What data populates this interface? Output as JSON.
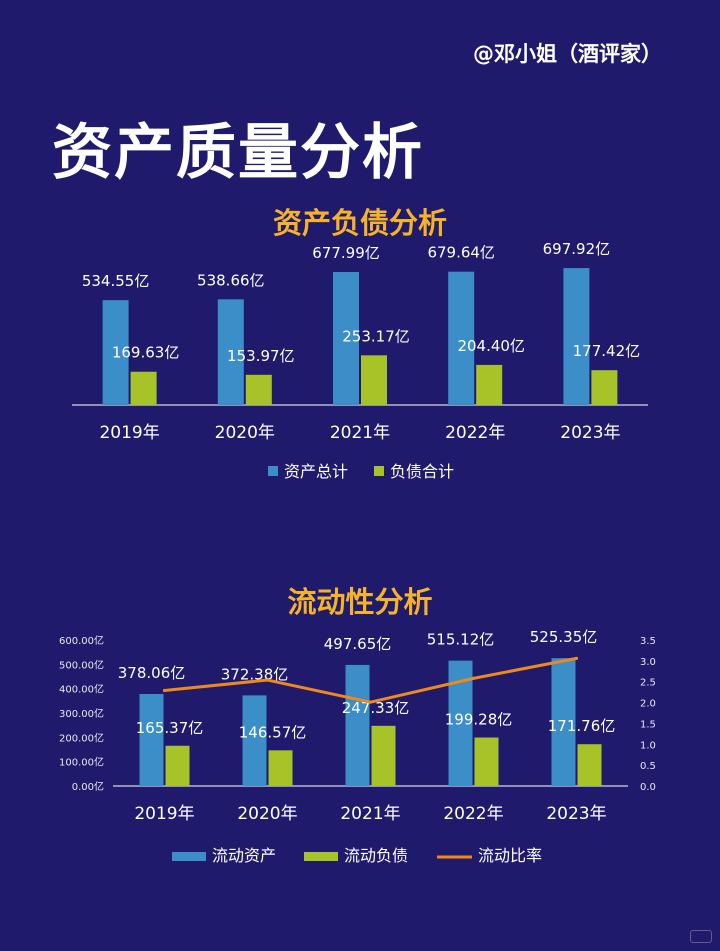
{
  "header": {
    "author": "@邓小姐（酒评家）",
    "title": "资产质量分析"
  },
  "colors": {
    "background": "#1f1a6b",
    "bar_primary": "#3b8ec7",
    "bar_secondary": "#a8c328",
    "line": "#ed8a1c",
    "title_accent": "#f5b32a"
  },
  "chart_data": [
    {
      "type": "bar",
      "title": "资产负债分析",
      "categories": [
        "2019年",
        "2020年",
        "2021年",
        "2022年",
        "2023年"
      ],
      "series": [
        {
          "name": "资产总计",
          "values": [
            534.55,
            538.66,
            677.99,
            679.64,
            697.92
          ],
          "labels": [
            "534.55亿",
            "538.66亿",
            "677.99亿",
            "679.64亿",
            "697.92亿"
          ]
        },
        {
          "name": "负债合计",
          "values": [
            169.63,
            153.97,
            253.17,
            204.4,
            177.42
          ],
          "labels": [
            "169.63亿",
            "153.97亿",
            "253.17亿",
            "204.40亿",
            "177.42亿"
          ]
        }
      ],
      "ylim": [
        0,
        1300
      ],
      "legend": "bottom",
      "grid": false
    },
    {
      "type": "bar",
      "title": "流动性分析",
      "categories": [
        "2019年",
        "2020年",
        "2021年",
        "2022年",
        "2023年"
      ],
      "series": [
        {
          "name": "流动资产",
          "values": [
            378.06,
            372.38,
            497.65,
            515.12,
            525.35
          ],
          "labels": [
            "378.06亿",
            "372.38亿",
            "497.65亿",
            "515.12亿",
            "525.35亿"
          ]
        },
        {
          "name": "流动负债",
          "values": [
            165.37,
            146.57,
            247.33,
            199.28,
            171.76
          ],
          "labels": [
            "165.37亿",
            "146.57亿",
            "247.33亿",
            "199.28亿",
            "171.76亿"
          ]
        },
        {
          "name": "流动比率",
          "type": "line",
          "axis": "right",
          "values": [
            2.29,
            2.54,
            2.01,
            2.58,
            3.06
          ]
        }
      ],
      "ylim": [
        0,
        600
      ],
      "y_ticks": [
        "0.00亿",
        "100.00亿",
        "200.00亿",
        "300.00亿",
        "400.00亿",
        "500.00亿",
        "600.00亿"
      ],
      "y2lim": [
        0,
        3.5
      ],
      "y2_ticks": [
        "0.0",
        "0.5",
        "1.0",
        "1.5",
        "2.0",
        "2.5",
        "3.0",
        "3.5"
      ],
      "legend": "bottom",
      "grid": false
    }
  ]
}
